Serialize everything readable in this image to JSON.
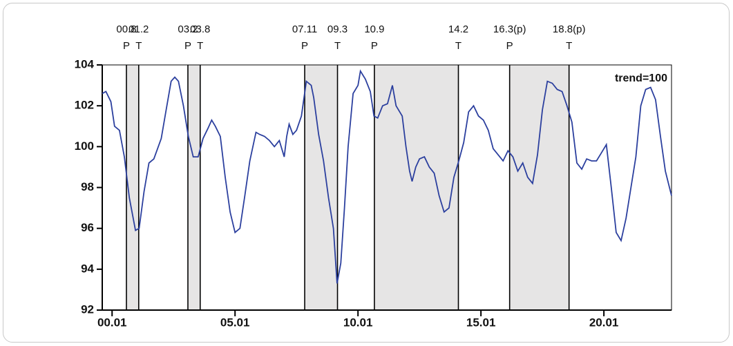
{
  "chart_data": {
    "type": "line",
    "annotation": "trend=100",
    "color": "#2b3f9e",
    "band_color": "#e6e5e5",
    "xlim": [
      1999.6,
      2022.75
    ],
    "xticks": [
      {
        "value": 2000,
        "label": "00.01"
      },
      {
        "value": 2005,
        "label": "05.01"
      },
      {
        "value": 2010,
        "label": "10.01"
      },
      {
        "value": 2015,
        "label": "15.01"
      },
      {
        "value": 2020,
        "label": "20.01"
      }
    ],
    "ylim": [
      92,
      104
    ],
    "yticks": [
      92,
      94,
      96,
      98,
      100,
      102,
      104
    ],
    "phases": [
      {
        "date": "00.8",
        "kind": "P",
        "x": 2000.583
      },
      {
        "date": "01.2",
        "kind": "T",
        "x": 2001.083
      },
      {
        "date": "03.2",
        "kind": "P",
        "x": 2003.083
      },
      {
        "date": "03.8",
        "kind": "T",
        "x": 2003.583
      },
      {
        "date": "07.11",
        "kind": "P",
        "x": 2007.833
      },
      {
        "date": "09.3",
        "kind": "T",
        "x": 2009.167
      },
      {
        "date": "10.9",
        "kind": "P",
        "x": 2010.667
      },
      {
        "date": "14.2",
        "kind": "T",
        "x": 2014.083
      },
      {
        "date": "16.3(p)",
        "kind": "P",
        "x": 2016.167
      },
      {
        "date": "18.8(p)",
        "kind": "T",
        "x": 2018.583
      }
    ],
    "x": [
      1999.6,
      1999.75,
      1999.95,
      2000.1,
      2000.3,
      2000.5,
      2000.7,
      2000.95,
      2001.1,
      2001.3,
      2001.5,
      2001.7,
      2002.0,
      2002.2,
      2002.4,
      2002.55,
      2002.7,
      2002.9,
      2003.1,
      2003.3,
      2003.5,
      2003.7,
      2003.9,
      2004.05,
      2004.2,
      2004.4,
      2004.6,
      2004.8,
      2005.0,
      2005.2,
      2005.4,
      2005.6,
      2005.85,
      2006.0,
      2006.2,
      2006.4,
      2006.6,
      2006.8,
      2007.0,
      2007.1,
      2007.2,
      2007.35,
      2007.5,
      2007.7,
      2007.9,
      2008.1,
      2008.2,
      2008.4,
      2008.6,
      2008.8,
      2009.0,
      2009.15,
      2009.3,
      2009.45,
      2009.6,
      2009.8,
      2010.0,
      2010.1,
      2010.3,
      2010.5,
      2010.65,
      2010.8,
      2011.0,
      2011.2,
      2011.4,
      2011.55,
      2011.8,
      2011.95,
      2012.1,
      2012.2,
      2012.35,
      2012.5,
      2012.7,
      2012.9,
      2013.1,
      2013.3,
      2013.5,
      2013.7,
      2013.9,
      2014.1,
      2014.3,
      2014.5,
      2014.7,
      2014.9,
      2015.1,
      2015.3,
      2015.5,
      2015.7,
      2015.9,
      2016.1,
      2016.3,
      2016.5,
      2016.7,
      2016.9,
      2017.1,
      2017.3,
      2017.5,
      2017.7,
      2017.9,
      2018.1,
      2018.3,
      2018.5,
      2018.7,
      2018.9,
      2019.1,
      2019.3,
      2019.5,
      2019.7,
      2019.9,
      2020.1,
      2020.3,
      2020.5,
      2020.7,
      2020.9,
      2021.1,
      2021.3,
      2021.5,
      2021.7,
      2021.9,
      2022.1,
      2022.3,
      2022.5,
      2022.75
    ],
    "values": [
      102.6,
      102.7,
      102.2,
      101.0,
      100.8,
      99.5,
      97.5,
      95.9,
      96.0,
      97.8,
      99.2,
      99.4,
      100.4,
      101.8,
      103.2,
      103.4,
      103.2,
      102.0,
      100.5,
      99.5,
      99.5,
      100.4,
      100.9,
      101.3,
      101.0,
      100.5,
      98.5,
      96.8,
      95.8,
      96.0,
      97.6,
      99.3,
      100.7,
      100.6,
      100.5,
      100.3,
      100.0,
      100.3,
      99.5,
      100.5,
      101.1,
      100.6,
      100.8,
      101.5,
      103.2,
      103.0,
      102.4,
      100.6,
      99.3,
      97.5,
      96.0,
      93.3,
      94.3,
      97.0,
      100.0,
      102.6,
      103.0,
      103.7,
      103.3,
      102.7,
      101.5,
      101.4,
      102.0,
      102.1,
      103.0,
      102.0,
      101.5,
      100.0,
      98.8,
      98.3,
      99.0,
      99.4,
      99.5,
      99.0,
      98.7,
      97.6,
      96.8,
      97.0,
      98.5,
      99.3,
      100.2,
      101.7,
      102.0,
      101.5,
      101.3,
      100.8,
      99.9,
      99.6,
      99.3,
      99.8,
      99.5,
      98.8,
      99.2,
      98.5,
      98.2,
      99.6,
      101.8,
      103.2,
      103.1,
      102.8,
      102.7,
      102.0,
      101.2,
      99.2,
      98.9,
      99.4,
      99.3,
      99.3,
      99.7,
      100.1,
      98.0,
      95.8,
      95.4,
      96.5,
      98.0,
      99.5,
      102.0,
      102.8,
      102.9,
      102.3,
      100.5,
      98.8,
      97.6
    ]
  }
}
